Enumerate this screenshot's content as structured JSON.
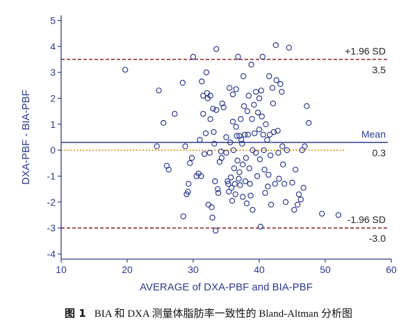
{
  "caption": {
    "figure_number": "图 1",
    "text": "BIA 和 DXA 测量体脂肪率一致性的 Bland-Altman 分析图"
  },
  "chart_data": {
    "type": "scatter",
    "title": "",
    "xlabel": "AVERAGE of DXA-PBF and BIA-PBF",
    "ylabel": "DXA-PBF - BIA-PBF",
    "xlim": [
      10,
      60
    ],
    "ylim": [
      -4.2,
      5.2
    ],
    "xticks": [
      10,
      20,
      30,
      40,
      50,
      60
    ],
    "yticks": [
      -4,
      -3,
      -2,
      -1,
      0,
      1,
      2,
      3,
      4,
      5
    ],
    "grid": false,
    "colors": {
      "points": "#2b3a8f",
      "axis": "#2b3a8f",
      "mean_line": "#2b3a8f",
      "limit_lines": "#8b1a1a",
      "zero_line": "#e08a00"
    },
    "reference_lines": [
      {
        "name": "+1.96 SD",
        "value": 3.5,
        "value_label": "3.5",
        "style": "dashed",
        "color": "#8b1a1a"
      },
      {
        "name": "Mean",
        "value": 0.3,
        "value_label": "0.3",
        "style": "solid",
        "color": "#2b3a8f"
      },
      {
        "name": "-1.96 SD",
        "value": -3.0,
        "value_label": "-3.0",
        "style": "dashed",
        "color": "#8b1a1a"
      }
    ],
    "zero_line": {
      "value": 0,
      "style": "dotted",
      "x_range": [
        10,
        53
      ],
      "color": "#e08a00"
    },
    "points": [
      [
        19.7,
        3.1
      ],
      [
        24.8,
        2.3
      ],
      [
        24.5,
        0.15
      ],
      [
        25.5,
        1.05
      ],
      [
        26,
        -0.6
      ],
      [
        26.3,
        -0.75
      ],
      [
        27.2,
        1.4
      ],
      [
        28.4,
        2.6
      ],
      [
        28.5,
        -2.55
      ],
      [
        28.8,
        0.15
      ],
      [
        29,
        -1.7
      ],
      [
        29.2,
        -1.6
      ],
      [
        29.3,
        -1.3
      ],
      [
        29.5,
        -0.5
      ],
      [
        29.8,
        -0.3
      ],
      [
        30,
        3.6
      ],
      [
        30.5,
        -1.0
      ],
      [
        30.8,
        -0.9
      ],
      [
        31,
        0.4
      ],
      [
        31.2,
        -1.0
      ],
      [
        31.3,
        2.65
      ],
      [
        31.5,
        2.1
      ],
      [
        31.5,
        1.4
      ],
      [
        31.7,
        -0.15
      ],
      [
        31.9,
        0.65
      ],
      [
        32,
        3.0
      ],
      [
        32.1,
        2.2
      ],
      [
        32.2,
        2.0
      ],
      [
        32.3,
        -2.1
      ],
      [
        32.5,
        -0.1
      ],
      [
        32.6,
        2.1
      ],
      [
        32.6,
        1.2
      ],
      [
        32.8,
        -2.2
      ],
      [
        32.9,
        -2.6
      ],
      [
        33,
        1.6
      ],
      [
        33.1,
        0.7
      ],
      [
        33.2,
        0.25
      ],
      [
        33.3,
        -1.2
      ],
      [
        33.4,
        -3.1
      ],
      [
        33.5,
        3.9
      ],
      [
        33.5,
        1.55
      ],
      [
        33.7,
        -1.5
      ],
      [
        33.8,
        -1.65
      ],
      [
        34,
        -0.45
      ],
      [
        34.2,
        -0.05
      ],
      [
        34.3,
        -0.3
      ],
      [
        34.4,
        1.8
      ],
      [
        34.6,
        1.65
      ],
      [
        35,
        0.5
      ],
      [
        35,
        -0.1
      ],
      [
        35.2,
        -1.2
      ],
      [
        35.3,
        -1.3
      ],
      [
        35.4,
        -1.6
      ],
      [
        35.5,
        2.4
      ],
      [
        35.6,
        0.3
      ],
      [
        35.7,
        -1.05
      ],
      [
        35.8,
        -1.45
      ],
      [
        35.9,
        -1.95
      ],
      [
        36,
        2.15
      ],
      [
        36,
        1.1
      ],
      [
        36.1,
        0.0
      ],
      [
        36.2,
        -0.7
      ],
      [
        36.3,
        -1.3
      ],
      [
        36.4,
        -1.7
      ],
      [
        36.5,
        2.35
      ],
      [
        36.5,
        0.9
      ],
      [
        36.6,
        0.55
      ],
      [
        36.7,
        -0.4
      ],
      [
        36.8,
        3.6
      ],
      [
        36.9,
        -1.1
      ],
      [
        37,
        0.55
      ],
      [
        37,
        -0.85
      ],
      [
        37.1,
        -1.35
      ],
      [
        37.2,
        1.2
      ],
      [
        37.3,
        0.4
      ],
      [
        37.4,
        0.25
      ],
      [
        37.5,
        -0.55
      ],
      [
        37.5,
        -1.8
      ],
      [
        37.6,
        2.85
      ],
      [
        37.7,
        1.7
      ],
      [
        37.8,
        0.6
      ],
      [
        37.9,
        -1.2
      ],
      [
        38,
        -0.3
      ],
      [
        38.1,
        -2.05
      ],
      [
        38.2,
        1.5
      ],
      [
        38.3,
        0.6
      ],
      [
        38.4,
        2.1
      ],
      [
        38.5,
        -0.7
      ],
      [
        38.6,
        -1.3
      ],
      [
        38.7,
        -1.75
      ],
      [
        38.8,
        3.3
      ],
      [
        38.9,
        1.2
      ],
      [
        39,
        0.0
      ],
      [
        39,
        -2.3
      ],
      [
        39.2,
        1.75
      ],
      [
        39.3,
        0.65
      ],
      [
        39.5,
        2.25
      ],
      [
        39.5,
        -0.1
      ],
      [
        39.7,
        -1.0
      ],
      [
        39.8,
        1.45
      ],
      [
        40,
        2.0
      ],
      [
        40,
        0.8
      ],
      [
        40.1,
        -0.35
      ],
      [
        40.2,
        -2.95
      ],
      [
        40.3,
        2.3
      ],
      [
        40.4,
        1.3
      ],
      [
        40.5,
        3.6
      ],
      [
        40.6,
        0.6
      ],
      [
        40.7,
        0.0
      ],
      [
        40.8,
        -0.75
      ],
      [
        40.9,
        -1.65
      ],
      [
        41,
        1.0
      ],
      [
        41.2,
        0.4
      ],
      [
        41.3,
        -1.4
      ],
      [
        41.4,
        -0.95
      ],
      [
        41.5,
        2.85
      ],
      [
        41.6,
        0.6
      ],
      [
        41.7,
        -0.2
      ],
      [
        41.8,
        -2.1
      ],
      [
        42,
        2.4
      ],
      [
        42.1,
        1.8
      ],
      [
        42.2,
        0.7
      ],
      [
        42.4,
        -1.3
      ],
      [
        42.5,
        4.05
      ],
      [
        42.6,
        2.7
      ],
      [
        42.8,
        0.75
      ],
      [
        42.9,
        -0.1
      ],
      [
        43,
        -1.1
      ],
      [
        43.2,
        2.55
      ],
      [
        43.4,
        2.25
      ],
      [
        43.5,
        0.15
      ],
      [
        43.6,
        -0.55
      ],
      [
        43.8,
        -1.3
      ],
      [
        44,
        -2.0
      ],
      [
        44.2,
        0.0
      ],
      [
        44.5,
        3.95
      ],
      [
        45,
        -1.25
      ],
      [
        45.3,
        -2.3
      ],
      [
        45.5,
        -0.75
      ],
      [
        45.8,
        -2.1
      ],
      [
        46,
        -1.7
      ],
      [
        46.3,
        -1.9
      ],
      [
        46.5,
        0.0
      ],
      [
        46.7,
        -1.45
      ],
      [
        46.9,
        0.15
      ],
      [
        47.2,
        1.7
      ],
      [
        47.5,
        1.05
      ],
      [
        49.5,
        -2.45
      ],
      [
        52,
        -2.5
      ]
    ]
  }
}
